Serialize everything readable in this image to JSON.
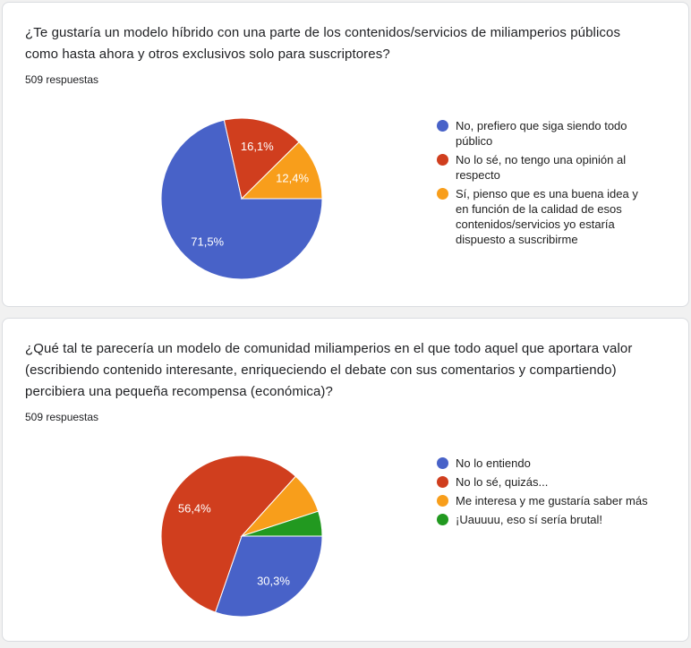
{
  "page": {
    "background_color": "#f1f1f1",
    "card_border_color": "#dadce0"
  },
  "cards": [
    {
      "question": "¿Te gustaría un modelo híbrido con una parte de los contenidos/servicios de miliamperios públicos como hasta ahora y otros exclusivos solo para suscriptores?",
      "responses_label": "509 respuestas"
    },
    {
      "question": "¿Qué tal te parecería un modelo de comunidad miliamperios en el que todo aquel que aportara valor (escribiendo contenido interesante, enriqueciendo el debate con sus comentarios y compartiendo) percibiera una pequeña recompensa (económica)?",
      "responses_label": "509 respuestas"
    }
  ],
  "chart_data": [
    {
      "type": "pie",
      "title": "¿Te gustaría un modelo híbrido con una parte de los contenidos/servicios de miliamperios públicos como hasta ahora y otros exclusivos solo para suscriptores?",
      "subtitle": "509 respuestas",
      "labels": [
        "No, prefiero que siga siendo todo público",
        "No lo sé, no tengo una opinión al respecto",
        "Sí, pienso que es una buena idea y en función de la calidad de esos contenidos/servicios yo estaría dispuesto a suscribirme"
      ],
      "values": [
        71.5,
        16.1,
        12.4
      ],
      "value_labels": [
        "71,5%",
        "16,1%",
        "12,4%"
      ],
      "colors": [
        "#4862C8",
        "#D03E1E",
        "#F89E1B"
      ],
      "slice_label_color": "#ffffff",
      "legend_position": "right",
      "start_angle": "3-oclock",
      "direction": "clockwise"
    },
    {
      "type": "pie",
      "title": "¿Qué tal te parecería un modelo de comunidad miliamperios en el que todo aquel que aportara valor (escribiendo contenido interesante, enriqueciendo el debate con sus comentarios y compartiendo) percibiera una pequeña recompensa (económica)?",
      "subtitle": "509 respuestas",
      "labels": [
        "No lo entiendo",
        "No lo sé, quizás...",
        "Me interesa y me gustaría saber más",
        "¡Uauuuu, eso sí sería brutal!"
      ],
      "values": [
        30.3,
        56.4,
        8.3,
        5.0
      ],
      "value_labels": [
        "30,3%",
        "56,4%",
        "",
        ""
      ],
      "colors": [
        "#4862C8",
        "#D03E1E",
        "#F89E1B",
        "#229920"
      ],
      "slice_label_color": "#ffffff",
      "legend_position": "right",
      "start_angle": "3-oclock",
      "direction": "clockwise"
    }
  ]
}
